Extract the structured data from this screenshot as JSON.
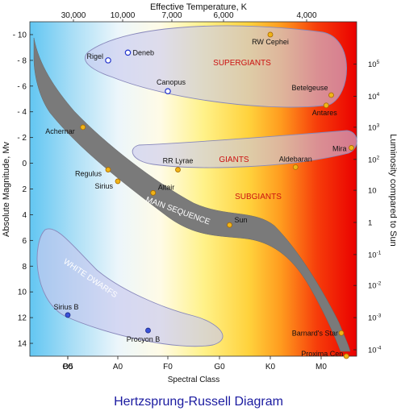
{
  "colors": {
    "region_label": "#cc1111",
    "star_fill": "#f0b418",
    "star_stroke": "#a86a00",
    "blue_star_fill": "#3a52d8",
    "hollow_star_stroke": "#2233cc",
    "title": "#1a1aa0",
    "main_sequence": "#7a7a7a",
    "white_dwarf_text": "#ffffff"
  },
  "chart_data": {
    "type": "scatter",
    "title": "Hertzsprung-Russell Diagram",
    "xlabel": "Spectral Class",
    "ylabel": "Absolute Magnitude, Mv",
    "top_label": "Effective Temperature, K",
    "right_label": "Luminosity compared to Sun",
    "x_ticks": [
      "O5",
      "B0",
      "A0",
      "F0",
      "G0",
      "K0",
      "M0"
    ],
    "top_ticks": [
      "30,000",
      "10,000",
      "7,000",
      "6,000",
      "4,000"
    ],
    "ylim": [
      15,
      -11
    ],
    "y_ticks": [
      -10,
      -8,
      -6,
      -4,
      -2,
      0,
      2,
      4,
      6,
      8,
      10,
      12,
      14
    ],
    "y_tick_labels": [
      "- 10",
      "- 8",
      "- 6",
      "- 4",
      "- 2",
      "0",
      "2",
      "4",
      "6",
      "8",
      "10",
      "12",
      "14"
    ],
    "lum_ticks": [
      {
        "mag": -7.7,
        "base": "10",
        "exp": "5"
      },
      {
        "mag": -5.2,
        "base": "10",
        "exp": "4"
      },
      {
        "mag": -2.8,
        "base": "10",
        "exp": "3"
      },
      {
        "mag": -0.3,
        "base": "10",
        "exp": "2"
      },
      {
        "mag": 2.1,
        "base": "10",
        "exp": ""
      },
      {
        "mag": 4.6,
        "base": "1",
        "exp": ""
      },
      {
        "mag": 7.1,
        "base": "10",
        "exp": "-1"
      },
      {
        "mag": 9.5,
        "base": "10",
        "exp": "-2"
      },
      {
        "mag": 12.0,
        "base": "10",
        "exp": "-3"
      },
      {
        "mag": 14.5,
        "base": "10",
        "exp": "-4"
      }
    ],
    "regions": [
      {
        "name": "SUPERGIANTS"
      },
      {
        "name": "GIANTS"
      },
      {
        "name": "SUBGIANTS"
      },
      {
        "name": "MAIN SEQUENCE"
      },
      {
        "name": "WHITE DWARFS"
      }
    ],
    "stars": [
      {
        "name": "Rigel",
        "spectral": "B8",
        "mag": -8.0,
        "style": "hollow"
      },
      {
        "name": "Deneb",
        "spectral": "A2",
        "mag": -8.6,
        "style": "hollow"
      },
      {
        "name": "RW Cephei",
        "spectral": "K0",
        "mag": -10.0,
        "style": "yellow"
      },
      {
        "name": "Canopus",
        "spectral": "F0",
        "mag": -5.6,
        "style": "hollow"
      },
      {
        "name": "Betelgeuse",
        "spectral": "M2",
        "mag": -5.3,
        "style": "yellow"
      },
      {
        "name": "Antares",
        "spectral": "M1",
        "mag": -4.5,
        "style": "yellow"
      },
      {
        "name": "Achernar",
        "spectral": "B3",
        "mag": -2.8,
        "style": "yellow"
      },
      {
        "name": "Mira",
        "spectral": "M6",
        "mag": -1.2,
        "style": "yellow"
      },
      {
        "name": "RR Lyrae",
        "spectral": "F2",
        "mag": 0.5,
        "style": "yellow"
      },
      {
        "name": "Aldebaran",
        "spectral": "K5",
        "mag": 0.3,
        "style": "yellow"
      },
      {
        "name": "Regulus",
        "spectral": "B8",
        "mag": 0.5,
        "style": "yellow"
      },
      {
        "name": "Sirius",
        "spectral": "A0",
        "mag": 1.4,
        "style": "yellow"
      },
      {
        "name": "Altair",
        "spectral": "A7",
        "mag": 2.3,
        "style": "yellow"
      },
      {
        "name": "Sun",
        "spectral": "G2",
        "mag": 4.8,
        "style": "yellow"
      },
      {
        "name": "Sirius B",
        "spectral": "B0",
        "mag": 11.8,
        "style": "blue"
      },
      {
        "name": "Procyon B",
        "spectral": "A6",
        "mag": 13.0,
        "style": "blue"
      },
      {
        "name": "Barnard's Star",
        "spectral": "M4",
        "mag": 13.2,
        "style": "yellow"
      },
      {
        "name": "Proxima Cen",
        "spectral": "M5",
        "mag": 15.0,
        "style": "yellow"
      }
    ]
  }
}
